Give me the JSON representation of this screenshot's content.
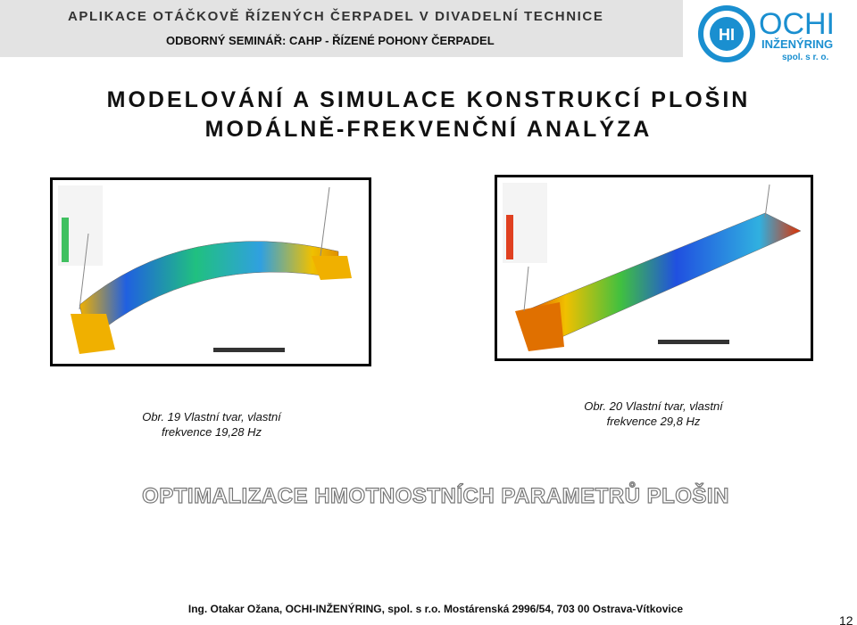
{
  "header": {
    "title": "APLIKACE OTÁČKOVĚ ŘÍZENÝCH ČERPADEL V DIVADELNÍ TECHNICE",
    "subtitle": "ODBORNÝ SEMINÁŘ: CAHP - ŘÍZENÉ POHONY ČERPADEL"
  },
  "logo": {
    "name": "OCHI",
    "line2": "INŽENÝRING",
    "line3": "spol. s r. o."
  },
  "title": {
    "line1": "MODELOVÁNÍ A SIMULACE KONSTRUKCÍ PLOŠIN",
    "line2": "MODÁLNĚ-FREKVENČNÍ ANALÝZA"
  },
  "figures": [
    {
      "caption": [
        "Obr. 19 Vlastní tvar, vlastní",
        "frekvence 19,28 Hz"
      ]
    },
    {
      "caption": [
        "Obr. 20 Vlastní tvar, vlastní",
        "frekvence 29,8 Hz"
      ]
    }
  ],
  "section_heading": "OPTIMALIZACE HMOTNOSTNÍCH PARAMETRŮ PLOŠIN",
  "footer": "Ing. Otakar Ožana, OCHI-INŽENÝRING, spol. s r.o. Mostárenská 2996/54, 703 00 Ostrava-Vítkovice",
  "page_number": "12"
}
